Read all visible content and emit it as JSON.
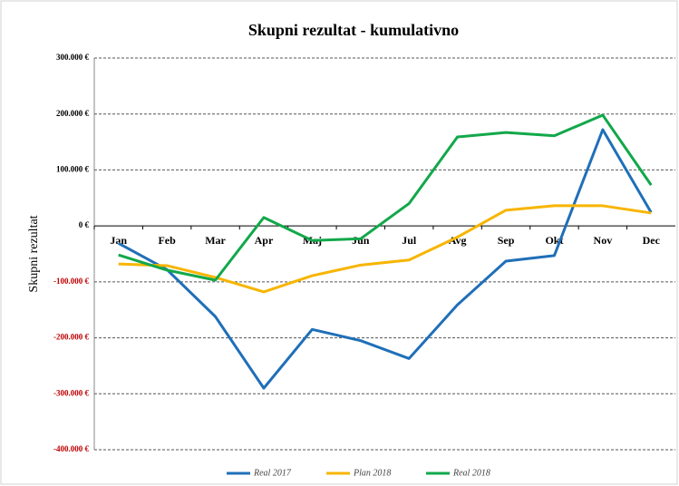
{
  "chart_data": {
    "type": "line",
    "title": "Skupni rezultat - kumulativno",
    "y_label": "Skupni rezultat",
    "categories": [
      "Jan",
      "Feb",
      "Mar",
      "Apr",
      "Maj",
      "Jun",
      "Jul",
      "Avg",
      "Sep",
      "Okt",
      "Nov",
      "Dec"
    ],
    "series": [
      {
        "name": "Real 2017",
        "color": "#1f6fb8",
        "values": [
          -31000,
          -78000,
          -162000,
          -290000,
          -185000,
          -205000,
          -237000,
          -141000,
          -63000,
          -53000,
          172000,
          24000
        ]
      },
      {
        "name": "Plan 2018",
        "color": "#f7b500",
        "values": [
          -68000,
          -71000,
          -92000,
          -118000,
          -89000,
          -70000,
          -61000,
          -20000,
          28000,
          36000,
          36000,
          23000
        ]
      },
      {
        "name": "Real 2018",
        "color": "#12a84a",
        "values": [
          -52000,
          -79000,
          -97000,
          15000,
          -26000,
          -23000,
          40000,
          159000,
          167000,
          161000,
          198000,
          73000
        ]
      }
    ],
    "ylim": [
      -400000,
      300000
    ],
    "yticks": [
      {
        "value": -400000,
        "label": "-400.000 €"
      },
      {
        "value": -300000,
        "label": "-300.000 €"
      },
      {
        "value": -200000,
        "label": "-200.000 €"
      },
      {
        "value": -100000,
        "label": "-100.000 €"
      },
      {
        "value": 0,
        "label": "0 €"
      },
      {
        "value": 100000,
        "label": "100.000 €"
      },
      {
        "value": 200000,
        "label": "200.000 €"
      },
      {
        "value": 300000,
        "label": "300.000 €"
      }
    ],
    "grid": true,
    "legend": "bottom"
  }
}
